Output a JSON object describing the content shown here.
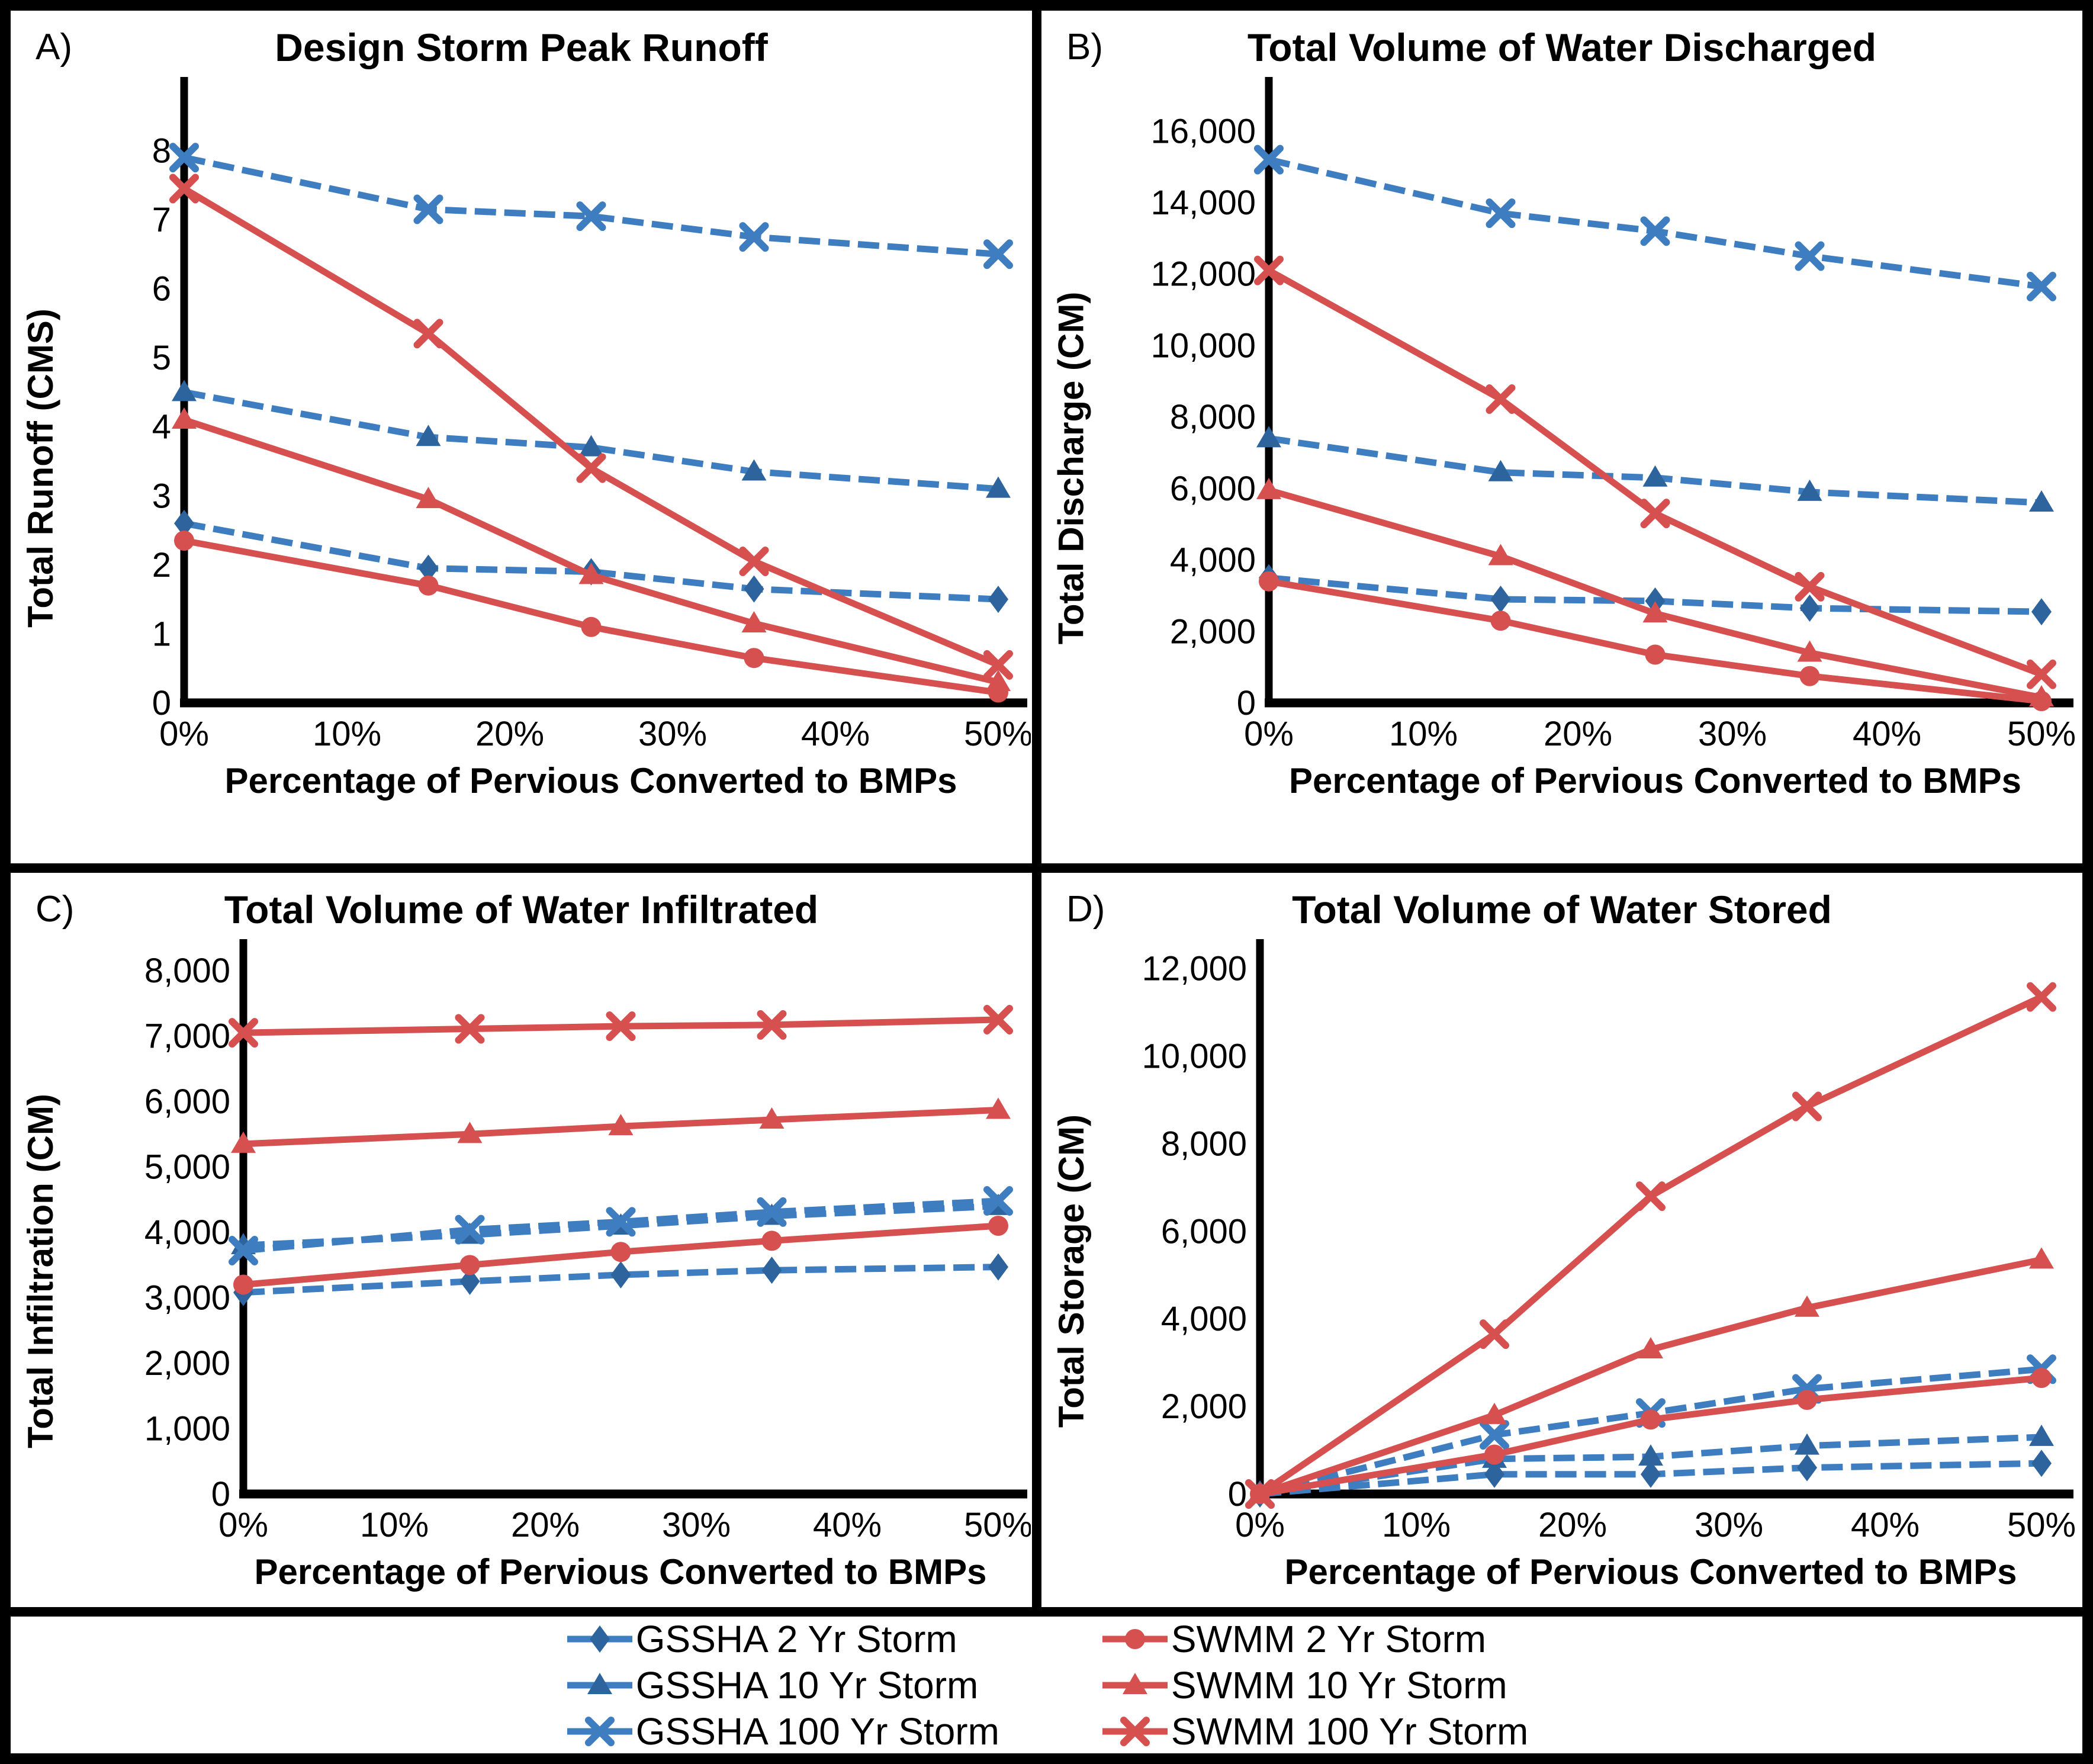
{
  "figure": {
    "background": "#ffffff",
    "border_color": "#000000",
    "blue_line_color": "#3E7DBF",
    "blue_marker_color": "#2E649E",
    "red_color": "#D65050"
  },
  "legend": {
    "items": [
      {
        "label": "GSSHA 2 Yr Storm",
        "line_color": "#3E7DBF",
        "marker_color": "#2E649E",
        "marker": "diamond",
        "dashed": true
      },
      {
        "label": "GSSHA 10 Yr Storm",
        "line_color": "#3E7DBF",
        "marker_color": "#2E649E",
        "marker": "triangle",
        "dashed": true
      },
      {
        "label": "GSSHA 100 Yr Storm",
        "line_color": "#3E7DBF",
        "marker_color": "#3E7DBF",
        "marker": "x",
        "dashed": true
      },
      {
        "label": "SWMM 2 Yr Storm",
        "line_color": "#D65050",
        "marker_color": "#D65050",
        "marker": "circle",
        "dashed": false
      },
      {
        "label": "SWMM 10 Yr Storm",
        "line_color": "#D65050",
        "marker_color": "#D65050",
        "marker": "triangle",
        "dashed": false
      },
      {
        "label": "SWMM 100 Yr Storm",
        "line_color": "#D65050",
        "marker_color": "#D65050",
        "marker": "x",
        "dashed": false
      }
    ]
  },
  "chart_data": [
    {
      "id": "A",
      "panel_label": "A)",
      "type": "line",
      "title": "Design Storm Peak Runoff",
      "xlabel": "Percentage of Pervious Converted to BMPs",
      "ylabel": "Total Runoff (CMS)",
      "x": [
        0,
        15,
        25,
        35,
        50
      ],
      "xlim": [
        0,
        50
      ],
      "ylim": [
        0,
        8.75
      ],
      "xticks": [
        0,
        10,
        20,
        30,
        40,
        50
      ],
      "xtick_labels": [
        "0%",
        "10%",
        "20%",
        "30%",
        "40%",
        "50%"
      ],
      "yticks": [
        0,
        1,
        2,
        3,
        4,
        5,
        6,
        7,
        8
      ],
      "ytick_labels": [
        "0",
        "1",
        "2",
        "3",
        "4",
        "5",
        "6",
        "7",
        "8"
      ],
      "grid": false,
      "series": [
        {
          "name": "GSSHA 2 Yr Storm",
          "values": [
            2.6,
            1.95,
            1.9,
            1.65,
            1.5
          ]
        },
        {
          "name": "GSSHA 10 Yr Storm",
          "values": [
            4.5,
            3.85,
            3.7,
            3.35,
            3.1
          ]
        },
        {
          "name": "GSSHA 100 Yr Storm",
          "values": [
            7.9,
            7.15,
            7.05,
            6.75,
            6.5
          ]
        },
        {
          "name": "SWMM 2 Yr Storm",
          "values": [
            2.35,
            1.7,
            1.1,
            0.65,
            0.15
          ]
        },
        {
          "name": "SWMM 10 Yr Storm",
          "values": [
            4.1,
            2.95,
            1.85,
            1.15,
            0.3
          ]
        },
        {
          "name": "SWMM 100 Yr Storm",
          "values": [
            7.45,
            5.35,
            3.4,
            2.05,
            0.55
          ]
        }
      ]
    },
    {
      "id": "B",
      "panel_label": "B)",
      "type": "line",
      "title": "Total Volume of Water Discharged",
      "xlabel": "Percentage of Pervious Converted to BMPs",
      "ylabel": "Total Discharge (CM)",
      "x": [
        0,
        15,
        25,
        35,
        50
      ],
      "xlim": [
        0,
        50
      ],
      "ylim": [
        0,
        16900
      ],
      "xticks": [
        0,
        10,
        20,
        30,
        40,
        50
      ],
      "xtick_labels": [
        "0%",
        "10%",
        "20%",
        "30%",
        "40%",
        "50%"
      ],
      "yticks": [
        0,
        2000,
        4000,
        6000,
        8000,
        10000,
        12000,
        14000,
        16000
      ],
      "ytick_labels": [
        "0",
        "2,000",
        "4,000",
        "6,000",
        "8,000",
        "10,000",
        "12,000",
        "14,000",
        "16,000"
      ],
      "grid": false,
      "series": [
        {
          "name": "GSSHA 2 Yr Storm",
          "values": [
            3500,
            2900,
            2850,
            2650,
            2550
          ]
        },
        {
          "name": "GSSHA 10 Yr Storm",
          "values": [
            7400,
            6450,
            6300,
            5900,
            5600
          ]
        },
        {
          "name": "GSSHA 100 Yr Storm",
          "values": [
            15200,
            13700,
            13200,
            12500,
            11650
          ]
        },
        {
          "name": "SWMM 2 Yr Storm",
          "values": [
            3400,
            2300,
            1350,
            750,
            50
          ]
        },
        {
          "name": "SWMM 10 Yr Storm",
          "values": [
            5950,
            4100,
            2500,
            1400,
            150
          ]
        },
        {
          "name": "SWMM 100 Yr Storm",
          "values": [
            12100,
            8500,
            5300,
            3250,
            800
          ]
        }
      ]
    },
    {
      "id": "C",
      "panel_label": "C)",
      "type": "line",
      "title": "Total Volume of Water Infiltrated",
      "xlabel": "Percentage of Pervious Converted to BMPs",
      "ylabel": "Total Infiltration (CM)",
      "x": [
        0,
        15,
        25,
        35,
        50
      ],
      "xlim": [
        0,
        50
      ],
      "ylim": [
        0,
        8300
      ],
      "xticks": [
        0,
        10,
        20,
        30,
        40,
        50
      ],
      "xtick_labels": [
        "0%",
        "10%",
        "20%",
        "30%",
        "40%",
        "50%"
      ],
      "yticks": [
        0,
        1000,
        2000,
        3000,
        4000,
        5000,
        6000,
        7000,
        8000
      ],
      "ytick_labels": [
        "0",
        "1,000",
        "2,000",
        "3,000",
        "4,000",
        "5,000",
        "6,000",
        "7,000",
        "8,000"
      ],
      "grid": false,
      "series": [
        {
          "name": "GSSHA 2 Yr Storm",
          "values": [
            3080,
            3250,
            3350,
            3420,
            3470
          ]
        },
        {
          "name": "GSSHA 10 Yr Storm",
          "values": [
            3800,
            3960,
            4100,
            4250,
            4400
          ]
        },
        {
          "name": "GSSHA 100 Yr Storm",
          "values": [
            3720,
            4040,
            4160,
            4310,
            4480
          ]
        },
        {
          "name": "SWMM 2 Yr Storm",
          "values": [
            3200,
            3500,
            3700,
            3870,
            4100
          ]
        },
        {
          "name": "SWMM 10 Yr Storm",
          "values": [
            5350,
            5500,
            5620,
            5720,
            5870
          ]
        },
        {
          "name": "SWMM 100 Yr Storm",
          "values": [
            7050,
            7110,
            7150,
            7170,
            7250
          ]
        }
      ]
    },
    {
      "id": "D",
      "panel_label": "D)",
      "type": "line",
      "title": "Total Volume of Water Stored",
      "xlabel": "Percentage of Pervious Converted to BMPs",
      "ylabel": "Total Storage (CM)",
      "x": [
        0,
        15,
        25,
        35,
        50
      ],
      "xlim": [
        0,
        50
      ],
      "ylim": [
        0,
        12400
      ],
      "xticks": [
        0,
        10,
        20,
        30,
        40,
        50
      ],
      "xtick_labels": [
        "0%",
        "10%",
        "20%",
        "30%",
        "40%",
        "50%"
      ],
      "yticks": [
        0,
        2000,
        4000,
        6000,
        8000,
        10000,
        12000
      ],
      "ytick_labels": [
        "0",
        "2,000",
        "4,000",
        "6,000",
        "8,000",
        "10,000",
        "12,000"
      ],
      "grid": false,
      "series": [
        {
          "name": "GSSHA 2 Yr Storm",
          "values": [
            0,
            450,
            450,
            600,
            700
          ]
        },
        {
          "name": "GSSHA 10 Yr Storm",
          "values": [
            0,
            800,
            850,
            1100,
            1300
          ]
        },
        {
          "name": "GSSHA 100 Yr Storm",
          "values": [
            0,
            1350,
            1850,
            2400,
            2850
          ]
        },
        {
          "name": "SWMM 2 Yr Storm",
          "values": [
            0,
            900,
            1700,
            2150,
            2650
          ]
        },
        {
          "name": "SWMM 10 Yr Storm",
          "values": [
            0,
            1800,
            3300,
            4250,
            5350
          ]
        },
        {
          "name": "SWMM 100 Yr Storm",
          "values": [
            0,
            3650,
            6800,
            8850,
            11350
          ]
        }
      ]
    }
  ]
}
